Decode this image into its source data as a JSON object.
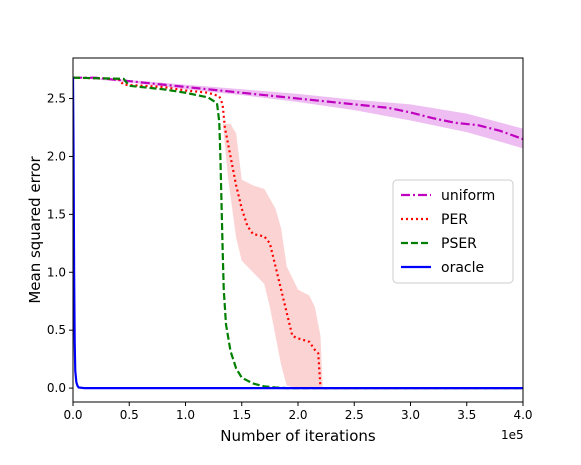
{
  "chart_data": {
    "type": "line",
    "xlabel": "Number of iterations",
    "ylabel": "Mean squared error",
    "x_offset_label": "1e5",
    "xlim": [
      0,
      4.0
    ],
    "ylim": [
      -0.12,
      2.85
    ],
    "x_ticks": [
      0.0,
      0.5,
      1.0,
      1.5,
      2.0,
      2.5,
      3.0,
      3.5,
      4.0
    ],
    "x_tick_labels": [
      "0.0",
      "0.5",
      "1.0",
      "1.5",
      "2.0",
      "2.5",
      "3.0",
      "3.5",
      "4.0"
    ],
    "y_ticks": [
      0.0,
      0.5,
      1.0,
      1.5,
      2.0,
      2.5
    ],
    "y_tick_labels": [
      "0.0",
      "0.5",
      "1.0",
      "1.5",
      "2.0",
      "2.5"
    ],
    "grid": false,
    "legend_position": "center-right",
    "series": [
      {
        "name": "uniform",
        "color": "#bf00bf",
        "dash": "dashdot",
        "band_color": "#e8a8ee",
        "points": [
          [
            0,
            2.68
          ],
          [
            0.2,
            2.68
          ],
          [
            0.4,
            2.66
          ],
          [
            0.6,
            2.64
          ],
          [
            0.8,
            2.62
          ],
          [
            1.0,
            2.6
          ],
          [
            1.2,
            2.58
          ],
          [
            1.4,
            2.56
          ],
          [
            1.6,
            2.54
          ],
          [
            1.8,
            2.52
          ],
          [
            2.0,
            2.5
          ],
          [
            2.2,
            2.48
          ],
          [
            2.4,
            2.46
          ],
          [
            2.6,
            2.44
          ],
          [
            2.8,
            2.42
          ],
          [
            3.0,
            2.38
          ],
          [
            3.2,
            2.33
          ],
          [
            3.4,
            2.29
          ],
          [
            3.6,
            2.27
          ],
          [
            3.8,
            2.22
          ],
          [
            4.0,
            2.15
          ]
        ],
        "band_lower": [
          [
            0,
            2.68
          ],
          [
            0.5,
            2.64
          ],
          [
            1.0,
            2.58
          ],
          [
            1.5,
            2.53
          ],
          [
            2.0,
            2.47
          ],
          [
            2.5,
            2.4
          ],
          [
            3.0,
            2.31
          ],
          [
            3.5,
            2.21
          ],
          [
            4.0,
            2.07
          ]
        ],
        "band_upper": [
          [
            0,
            2.69
          ],
          [
            0.5,
            2.66
          ],
          [
            1.0,
            2.62
          ],
          [
            1.5,
            2.58
          ],
          [
            2.0,
            2.54
          ],
          [
            2.5,
            2.49
          ],
          [
            3.0,
            2.45
          ],
          [
            3.5,
            2.37
          ],
          [
            4.0,
            2.24
          ]
        ]
      },
      {
        "name": "PER",
        "color": "#ff0000",
        "dash": "dotted",
        "band_color": "#fbc4c4",
        "points": [
          [
            0,
            2.68
          ],
          [
            0.4,
            2.67
          ],
          [
            0.45,
            2.62
          ],
          [
            0.8,
            2.6
          ],
          [
            1.0,
            2.57
          ],
          [
            1.2,
            2.55
          ],
          [
            1.3,
            2.52
          ],
          [
            1.33,
            2.45
          ],
          [
            1.35,
            2.25
          ],
          [
            1.4,
            2.0
          ],
          [
            1.45,
            1.75
          ],
          [
            1.5,
            1.55
          ],
          [
            1.55,
            1.4
          ],
          [
            1.6,
            1.33
          ],
          [
            1.7,
            1.31
          ],
          [
            1.75,
            1.25
          ],
          [
            1.8,
            1.05
          ],
          [
            1.85,
            0.85
          ],
          [
            1.9,
            0.65
          ],
          [
            1.95,
            0.45
          ],
          [
            2.0,
            0.43
          ],
          [
            2.1,
            0.4
          ],
          [
            2.15,
            0.33
          ],
          [
            2.18,
            0.3
          ],
          [
            2.19,
            0.15
          ],
          [
            2.2,
            0.0
          ],
          [
            4.0,
            0.0
          ]
        ],
        "band_lower": [
          [
            1.3,
            2.5
          ],
          [
            1.33,
            2.3
          ],
          [
            1.38,
            1.8
          ],
          [
            1.45,
            1.3
          ],
          [
            1.5,
            1.1
          ],
          [
            1.6,
            1.0
          ],
          [
            1.7,
            0.9
          ],
          [
            1.75,
            0.7
          ],
          [
            1.8,
            0.45
          ],
          [
            1.85,
            0.2
          ],
          [
            1.9,
            0.02
          ],
          [
            2.0,
            0.0
          ],
          [
            2.2,
            0.0
          ]
        ],
        "band_upper": [
          [
            1.3,
            2.52
          ],
          [
            1.33,
            2.28
          ],
          [
            1.4,
            2.28
          ],
          [
            1.45,
            2.2
          ],
          [
            1.5,
            1.8
          ],
          [
            1.6,
            1.75
          ],
          [
            1.7,
            1.72
          ],
          [
            1.8,
            1.55
          ],
          [
            1.85,
            1.38
          ],
          [
            1.9,
            1.05
          ],
          [
            2.0,
            0.85
          ],
          [
            2.1,
            0.8
          ],
          [
            2.15,
            0.7
          ],
          [
            2.2,
            0.45
          ],
          [
            2.22,
            0.0
          ]
        ]
      },
      {
        "name": "PSER",
        "color": "#007f00",
        "dash": "dashed",
        "points": [
          [
            0,
            2.68
          ],
          [
            0.45,
            2.67
          ],
          [
            0.5,
            2.61
          ],
          [
            0.8,
            2.58
          ],
          [
            1.0,
            2.55
          ],
          [
            1.2,
            2.51
          ],
          [
            1.28,
            2.46
          ],
          [
            1.3,
            2.3
          ],
          [
            1.31,
            2.0
          ],
          [
            1.32,
            1.6
          ],
          [
            1.33,
            1.2
          ],
          [
            1.34,
            0.85
          ],
          [
            1.36,
            0.55
          ],
          [
            1.4,
            0.32
          ],
          [
            1.45,
            0.17
          ],
          [
            1.5,
            0.09
          ],
          [
            1.6,
            0.04
          ],
          [
            1.7,
            0.015
          ],
          [
            1.8,
            0.005
          ],
          [
            1.9,
            0.0
          ],
          [
            4.0,
            0.0
          ]
        ]
      },
      {
        "name": "oracle",
        "color": "#0000ff",
        "dash": "solid",
        "points": [
          [
            0,
            2.68
          ],
          [
            0.005,
            2.0
          ],
          [
            0.01,
            1.0
          ],
          [
            0.015,
            0.4
          ],
          [
            0.02,
            0.15
          ],
          [
            0.03,
            0.05
          ],
          [
            0.04,
            0.02
          ],
          [
            0.05,
            0.005
          ],
          [
            0.1,
            0.0
          ],
          [
            4.0,
            0.0
          ]
        ]
      }
    ]
  }
}
